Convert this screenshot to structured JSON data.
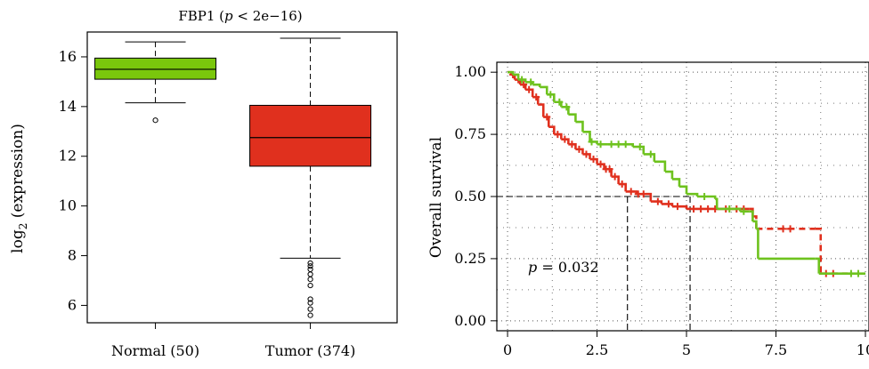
{
  "chart_data": [
    {
      "type": "boxplot",
      "title": "FBP1 (p < 2e−16)",
      "title_parts": {
        "gene": "FBP1 (",
        "p_symbol": "p",
        "rest": " < 2e−16)"
      },
      "ylabel": "log2 (expression)",
      "ylabel_parts": {
        "base": "log",
        "subscript": "2",
        "rest": " (expression)"
      },
      "ylim": [
        5.3,
        17.0
      ],
      "y_ticks": [
        6,
        8,
        10,
        12,
        14,
        16
      ],
      "y_tick_labels": [
        "6",
        "8",
        "10",
        "12",
        "14",
        "16"
      ],
      "categories": [
        "Normal (50)",
        "Tumor (374)"
      ],
      "boxes": [
        {
          "name": "Normal (50)",
          "color": "#7ac70c",
          "whisker_low": 14.15,
          "q1": 15.1,
          "median": 15.5,
          "q3": 15.95,
          "whisker_high": 16.6,
          "outliers": [
            13.45
          ]
        },
        {
          "name": "Tumor (374)",
          "color": "#e0301e",
          "whisker_low": 7.9,
          "q1": 11.6,
          "median": 12.75,
          "q3": 14.05,
          "whisker_high": 16.75,
          "outliers": [
            7.7,
            7.58,
            7.45,
            7.25,
            7.05,
            6.8,
            6.25,
            6.1,
            5.85,
            5.6
          ]
        }
      ]
    },
    {
      "type": "line",
      "subtype": "kaplan-meier",
      "ylabel": "Overall survival",
      "xlabel": "",
      "xlim": [
        -0.3,
        10.1
      ],
      "ylim": [
        -0.04,
        1.04
      ],
      "x_ticks": [
        0,
        2.5,
        5,
        7.5,
        10
      ],
      "x_tick_labels": [
        "0",
        "2.5",
        "5",
        "7.5",
        "10"
      ],
      "y_ticks": [
        0.0,
        0.25,
        0.5,
        0.75,
        1.0
      ],
      "y_tick_labels": [
        "0.00",
        "0.25",
        "0.50",
        "0.75",
        "1.00"
      ],
      "grid": true,
      "p_value_label": {
        "symbol": "p",
        "text": " = 0.032"
      },
      "median_lines": [
        {
          "y": 0.5,
          "x_end": 5.1,
          "drops": [
            3.35,
            5.1
          ]
        }
      ],
      "series": [
        {
          "color": "#e0301e",
          "line_style": "dashed-after-6.8",
          "points": [
            [
              0,
              1.0
            ],
            [
              0.1,
              0.99
            ],
            [
              0.2,
              0.97
            ],
            [
              0.35,
              0.95
            ],
            [
              0.5,
              0.93
            ],
            [
              0.7,
              0.9
            ],
            [
              0.85,
              0.87
            ],
            [
              1.0,
              0.82
            ],
            [
              1.15,
              0.78
            ],
            [
              1.3,
              0.75
            ],
            [
              1.5,
              0.73
            ],
            [
              1.7,
              0.71
            ],
            [
              1.9,
              0.69
            ],
            [
              2.1,
              0.67
            ],
            [
              2.3,
              0.65
            ],
            [
              2.5,
              0.63
            ],
            [
              2.7,
              0.61
            ],
            [
              2.9,
              0.58
            ],
            [
              3.1,
              0.55
            ],
            [
              3.3,
              0.52
            ],
            [
              3.6,
              0.51
            ],
            [
              3.85,
              0.51
            ],
            [
              4.0,
              0.48
            ],
            [
              4.3,
              0.47
            ],
            [
              4.6,
              0.46
            ],
            [
              5.0,
              0.45
            ],
            [
              5.6,
              0.45
            ],
            [
              6.3,
              0.45
            ],
            [
              6.75,
              0.45
            ],
            [
              6.85,
              0.42
            ],
            [
              6.95,
              0.37
            ],
            [
              8.6,
              0.37
            ],
            [
              8.75,
              0.19
            ],
            [
              9.5,
              0.19
            ]
          ],
          "censor_x": [
            0.15,
            0.3,
            0.45,
            0.6,
            0.8,
            1.1,
            1.4,
            1.6,
            1.8,
            2.0,
            2.2,
            2.4,
            2.6,
            2.75,
            2.85,
            3.0,
            3.2,
            3.45,
            3.65,
            3.8,
            4.2,
            4.5,
            4.75,
            5.2,
            5.4,
            5.6,
            5.8,
            6.1,
            6.4,
            6.6,
            7.7,
            7.9,
            8.9,
            9.1
          ]
        },
        {
          "color": "#6ec21e",
          "line_style": "solid",
          "points": [
            [
              0,
              1.0
            ],
            [
              0.15,
              0.99
            ],
            [
              0.3,
              0.97
            ],
            [
              0.5,
              0.96
            ],
            [
              0.7,
              0.95
            ],
            [
              0.9,
              0.94
            ],
            [
              1.1,
              0.91
            ],
            [
              1.3,
              0.88
            ],
            [
              1.5,
              0.86
            ],
            [
              1.7,
              0.83
            ],
            [
              1.9,
              0.8
            ],
            [
              2.1,
              0.76
            ],
            [
              2.3,
              0.72
            ],
            [
              2.5,
              0.71
            ],
            [
              2.8,
              0.71
            ],
            [
              3.2,
              0.71
            ],
            [
              3.5,
              0.7
            ],
            [
              3.8,
              0.67
            ],
            [
              4.1,
              0.64
            ],
            [
              4.4,
              0.6
            ],
            [
              4.6,
              0.57
            ],
            [
              4.8,
              0.54
            ],
            [
              5.0,
              0.51
            ],
            [
              5.3,
              0.5
            ],
            [
              5.8,
              0.49
            ],
            [
              5.85,
              0.45
            ],
            [
              6.5,
              0.44
            ],
            [
              6.75,
              0.44
            ],
            [
              6.85,
              0.4
            ],
            [
              6.95,
              0.37
            ],
            [
              7.0,
              0.25
            ],
            [
              8.6,
              0.25
            ],
            [
              8.7,
              0.19
            ],
            [
              10.0,
              0.19
            ]
          ],
          "censor_x": [
            0.4,
            0.65,
            1.2,
            1.45,
            1.65,
            2.35,
            2.6,
            2.9,
            3.1,
            3.3,
            3.7,
            4.0,
            5.5,
            6.2,
            6.6,
            9.6,
            9.8
          ]
        }
      ]
    }
  ]
}
